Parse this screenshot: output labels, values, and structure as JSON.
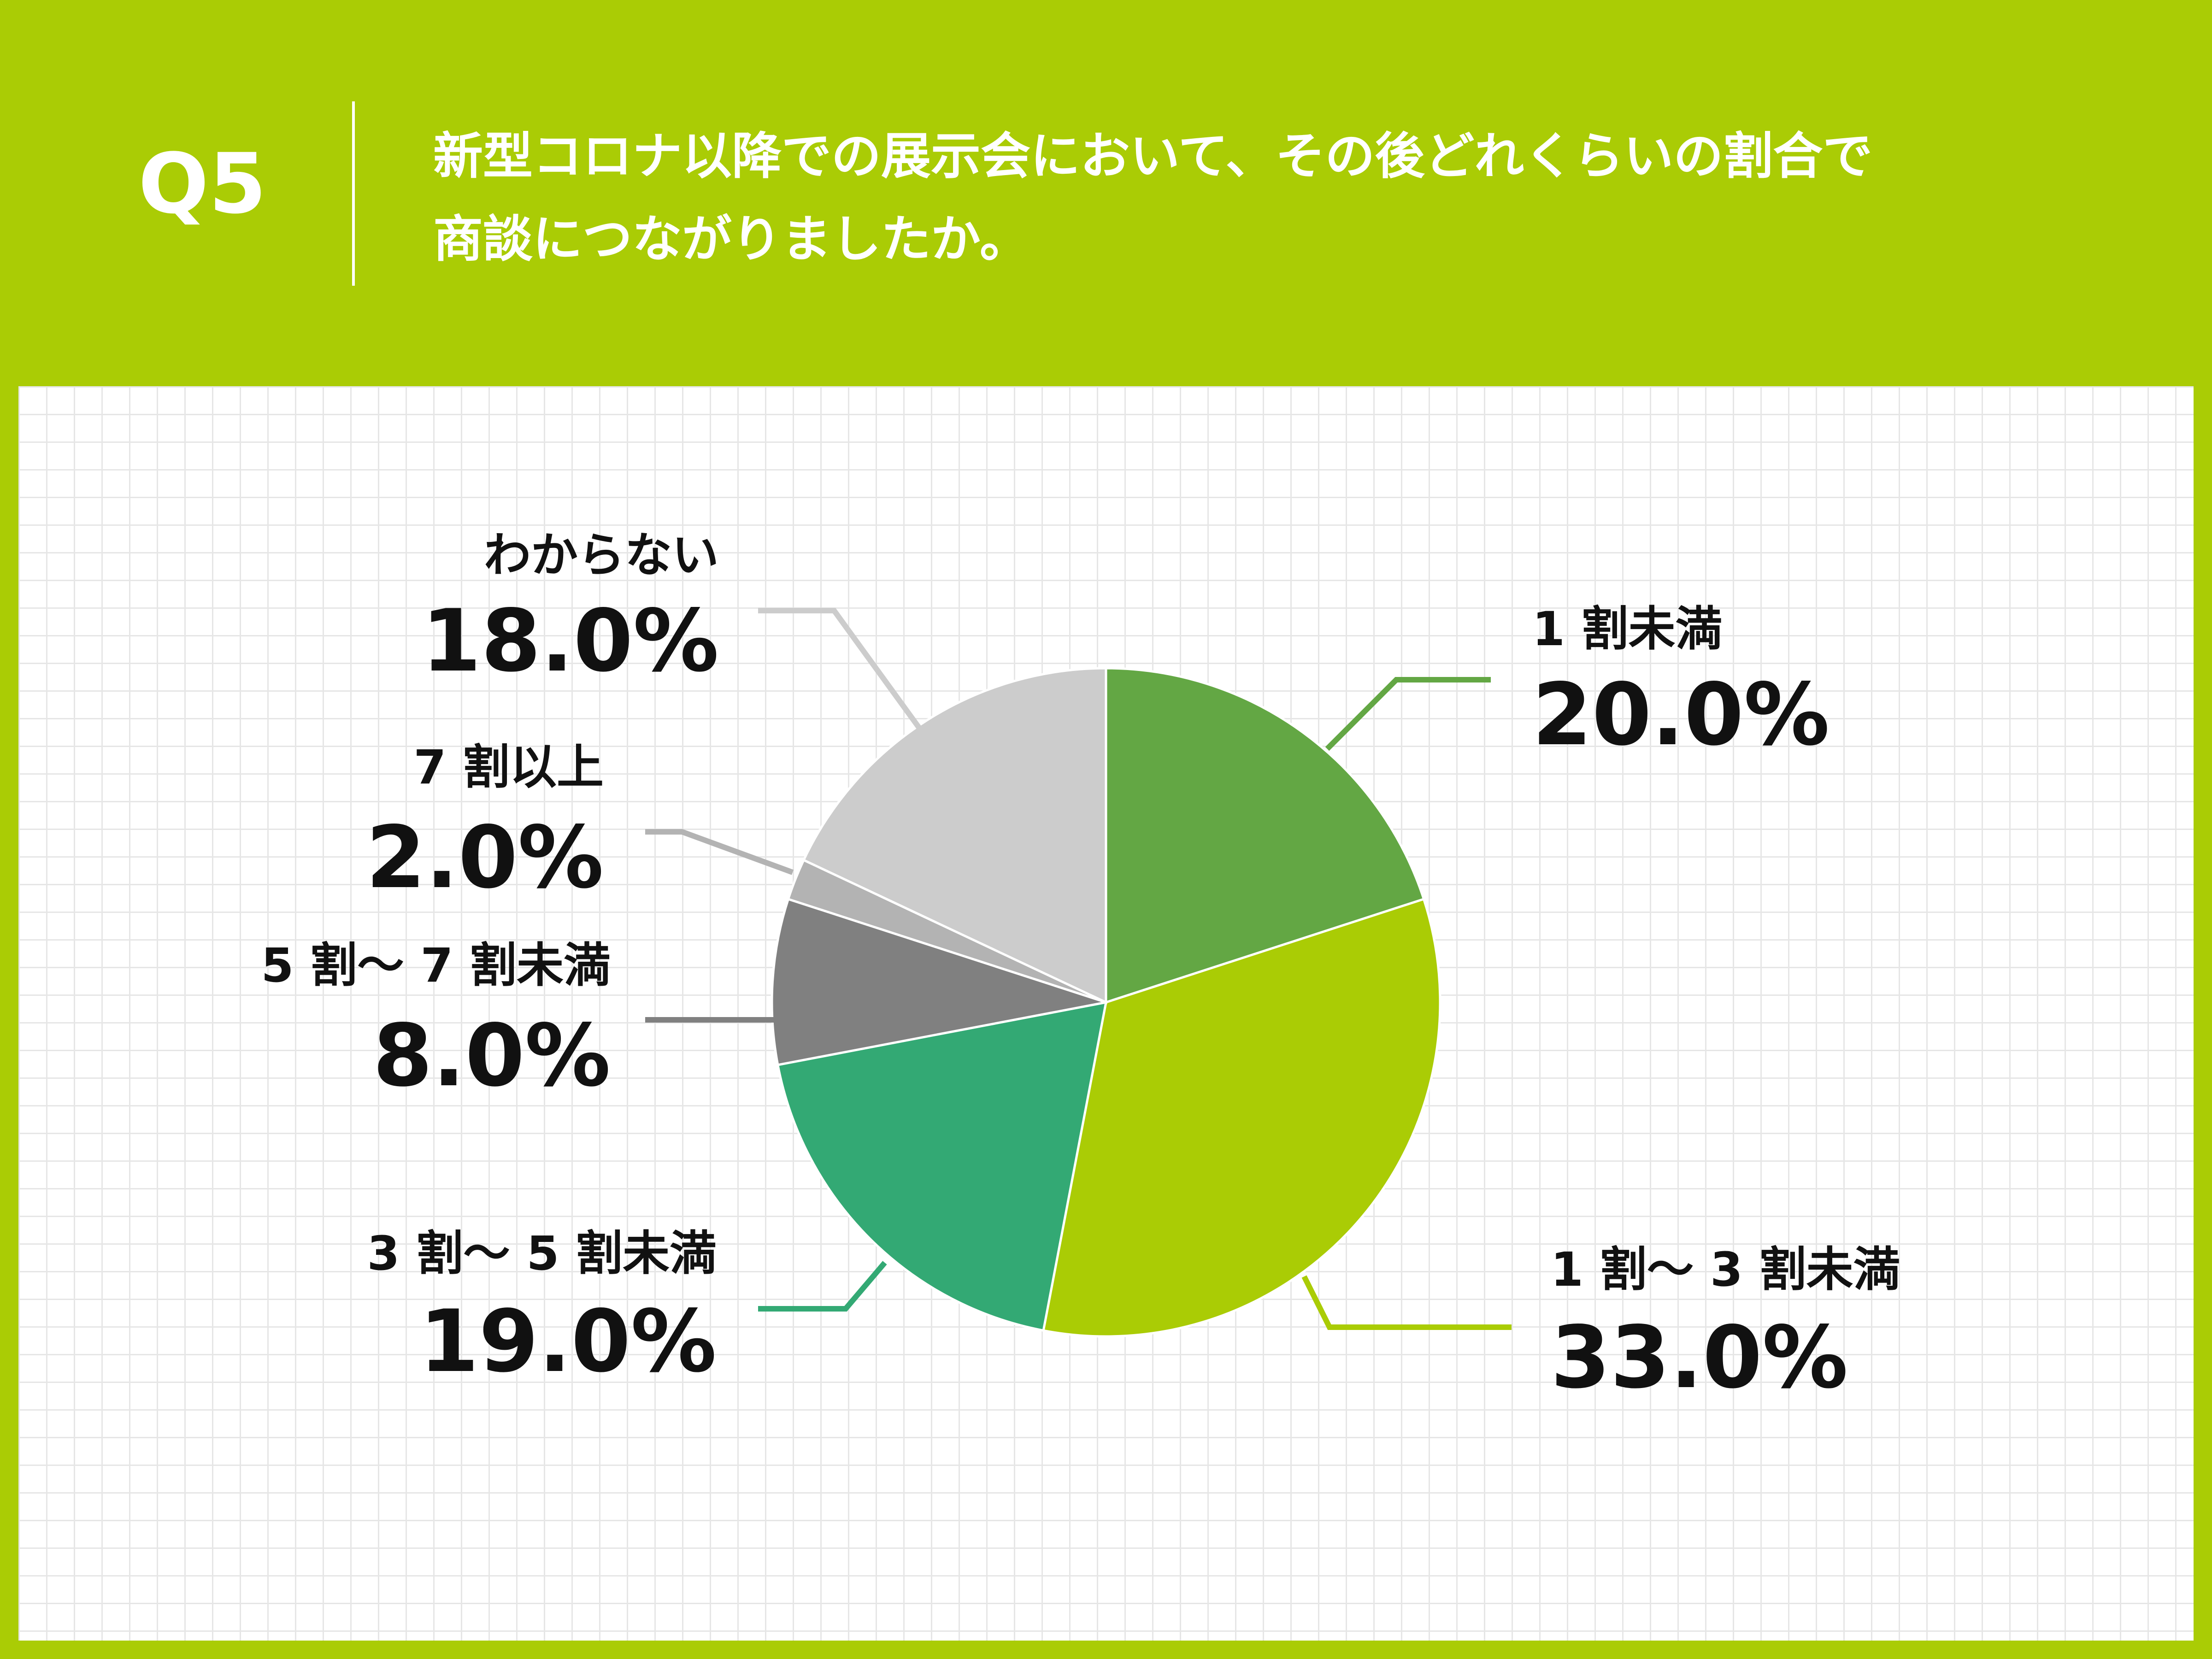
{
  "header": {
    "question_number": "Q5",
    "question_line1": "新型コロナ以降での展示会において、その後どれくらいの割合で",
    "question_line2": "商談につながりましたか。"
  },
  "colors": {
    "background_accent": "#aacc05",
    "one_wari_miman": "#63a744",
    "one_to_three": "#aacc05",
    "three_to_five": "#33a974",
    "five_to_seven": "#808080",
    "seven_plus": "#b3b3b3",
    "unknown": "#cccccc"
  },
  "chart_data": {
    "type": "pie",
    "title": "",
    "slices": [
      {
        "label": "1 割未満",
        "value": 20.0,
        "display": "20.0%",
        "color": "#63a744"
      },
      {
        "label": "1 割～ 3 割未満",
        "value": 33.0,
        "display": "33.0%",
        "color": "#aacc05"
      },
      {
        "label": "3 割～ 5 割未満",
        "value": 19.0,
        "display": "19.0%",
        "color": "#33a974"
      },
      {
        "label": "5 割～ 7 割未満",
        "value": 8.0,
        "display": "8.0%",
        "color": "#808080"
      },
      {
        "label": "7 割以上",
        "value": 2.0,
        "display": "2.0%",
        "color": "#b3b3b3"
      },
      {
        "label": "わからない",
        "value": 18.0,
        "display": "18.0%",
        "color": "#cccccc"
      }
    ]
  }
}
